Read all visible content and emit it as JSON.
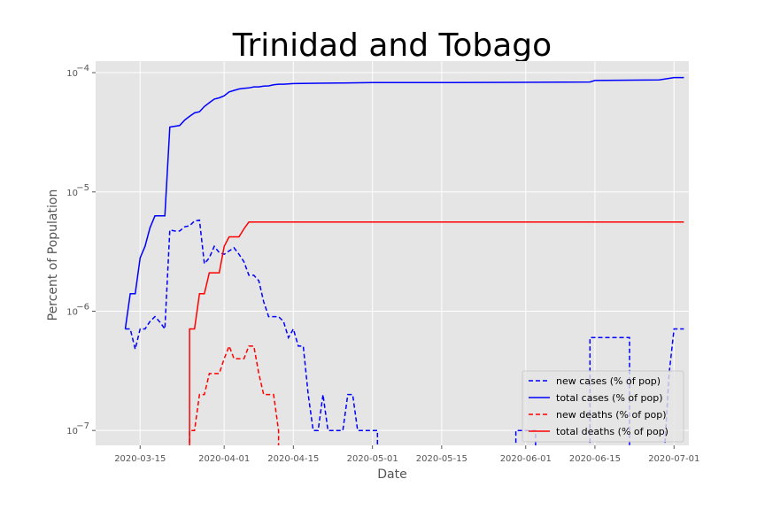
{
  "chart_data": {
    "type": "line",
    "title": "Trinidad and Tobago",
    "xlabel": "Date",
    "ylabel": "Percent of Population",
    "y_scale": "log",
    "ylim": [
      7.5e-08,
      0.000125
    ],
    "xlim": [
      "2020-03-06",
      "2020-07-04"
    ],
    "grid": true,
    "legend_position": "lower-right",
    "x_ticks": [
      "2020-03-15",
      "2020-04-01",
      "2020-04-15",
      "2020-05-01",
      "2020-05-15",
      "2020-06-01",
      "2020-06-15",
      "2020-07-01"
    ],
    "y_ticks": [
      {
        "value": 1e-07,
        "base": "10",
        "exp": "−7"
      },
      {
        "value": 1e-06,
        "base": "10",
        "exp": "−6"
      },
      {
        "value": 1e-05,
        "base": "10",
        "exp": "−5"
      },
      {
        "value": 0.0001,
        "base": "10",
        "exp": "−4"
      }
    ],
    "series": [
      {
        "name": "new cases (% of pop)",
        "color": "#0000ff",
        "style": "dashed",
        "points": [
          [
            "2020-03-12",
            7.1e-07
          ],
          [
            "2020-03-13",
            7.1e-07
          ],
          [
            "2020-03-14",
            4.8e-07
          ],
          [
            "2020-03-15",
            7.1e-07
          ],
          [
            "2020-03-16",
            7.1e-07
          ],
          [
            "2020-03-17",
            8.2e-07
          ],
          [
            "2020-03-18",
            9e-07
          ],
          [
            "2020-03-19",
            8.1e-07
          ],
          [
            "2020-03-20",
            7.1e-07
          ],
          [
            "2020-03-21",
            4.8e-06
          ],
          [
            "2020-03-22",
            4.7e-06
          ],
          [
            "2020-03-23",
            4.7e-06
          ],
          [
            "2020-03-24",
            5.1e-06
          ],
          [
            "2020-03-25",
            5.2e-06
          ],
          [
            "2020-03-26",
            5.7e-06
          ],
          [
            "2020-03-27",
            5.8e-06
          ],
          [
            "2020-03-28",
            2.5e-06
          ],
          [
            "2020-03-29",
            2.8e-06
          ],
          [
            "2020-03-30",
            3.5e-06
          ],
          [
            "2020-03-31",
            3.1e-06
          ],
          [
            "2020-04-01",
            3e-06
          ],
          [
            "2020-04-02",
            3.2e-06
          ],
          [
            "2020-04-03",
            3.4e-06
          ],
          [
            "2020-04-04",
            3e-06
          ],
          [
            "2020-04-05",
            2.6e-06
          ],
          [
            "2020-04-06",
            2e-06
          ],
          [
            "2020-04-07",
            2e-06
          ],
          [
            "2020-04-08",
            1.8e-06
          ],
          [
            "2020-04-09",
            1.2e-06
          ],
          [
            "2020-04-10",
            9e-07
          ],
          [
            "2020-04-11",
            9e-07
          ],
          [
            "2020-04-12",
            9e-07
          ],
          [
            "2020-04-13",
            8.2e-07
          ],
          [
            "2020-04-14",
            6e-07
          ],
          [
            "2020-04-15",
            7.1e-07
          ],
          [
            "2020-04-16",
            5.1e-07
          ],
          [
            "2020-04-17",
            5.1e-07
          ],
          [
            "2020-04-18",
            2e-07
          ],
          [
            "2020-04-19",
            1e-07
          ],
          [
            "2020-04-20",
            1e-07
          ],
          [
            "2020-04-21",
            2e-07
          ],
          [
            "2020-04-22",
            1e-07
          ],
          [
            "2020-04-23",
            1e-07
          ],
          [
            "2020-04-24",
            1e-07
          ],
          [
            "2020-04-25",
            1e-07
          ],
          [
            "2020-04-26",
            2e-07
          ],
          [
            "2020-04-27",
            2e-07
          ],
          [
            "2020-04-28",
            1e-07
          ],
          [
            "2020-04-29",
            1e-07
          ],
          [
            "2020-04-30",
            1e-07
          ],
          [
            "2020-05-01",
            1e-07
          ],
          [
            "2020-05-02",
            1e-07
          ],
          [
            "2020-05-02",
            6e-08
          ]
        ],
        "segments_extra": [
          [
            [
              "2020-05-30",
              6e-08
            ],
            [
              "2020-05-30",
              1e-07
            ],
            [
              "2020-06-03",
              1e-07
            ],
            [
              "2020-06-03",
              6e-08
            ]
          ],
          [
            [
              "2020-06-14",
              6e-08
            ],
            [
              "2020-06-14",
              6e-07
            ],
            [
              "2020-06-22",
              6e-07
            ],
            [
              "2020-06-22",
              6e-08
            ]
          ],
          [
            [
              "2020-06-29",
              6e-08
            ],
            [
              "2020-06-30",
              3e-07
            ],
            [
              "2020-07-01",
              7.1e-07
            ],
            [
              "2020-07-03",
              7.1e-07
            ]
          ]
        ]
      },
      {
        "name": "total cases (% of pop)",
        "color": "#0000ff",
        "style": "solid",
        "points": [
          [
            "2020-03-12",
            7.1e-07
          ],
          [
            "2020-03-13",
            1.4e-06
          ],
          [
            "2020-03-14",
            1.4e-06
          ],
          [
            "2020-03-15",
            2.8e-06
          ],
          [
            "2020-03-16",
            3.5e-06
          ],
          [
            "2020-03-17",
            5e-06
          ],
          [
            "2020-03-18",
            6.3e-06
          ],
          [
            "2020-03-19",
            6.3e-06
          ],
          [
            "2020-03-20",
            6.3e-06
          ],
          [
            "2020-03-21",
            3.5e-05
          ],
          [
            "2020-03-22",
            3.55e-05
          ],
          [
            "2020-03-23",
            3.6e-05
          ],
          [
            "2020-03-24",
            4e-05
          ],
          [
            "2020-03-25",
            4.3e-05
          ],
          [
            "2020-03-26",
            4.6e-05
          ],
          [
            "2020-03-27",
            4.7e-05
          ],
          [
            "2020-03-28",
            5.2e-05
          ],
          [
            "2020-03-29",
            5.6e-05
          ],
          [
            "2020-03-30",
            6e-05
          ],
          [
            "2020-03-31",
            6.15e-05
          ],
          [
            "2020-04-01",
            6.4e-05
          ],
          [
            "2020-04-02",
            6.9e-05
          ],
          [
            "2020-04-03",
            7.1e-05
          ],
          [
            "2020-04-04",
            7.3e-05
          ],
          [
            "2020-04-05",
            7.4e-05
          ],
          [
            "2020-04-06",
            7.45e-05
          ],
          [
            "2020-04-07",
            7.6e-05
          ],
          [
            "2020-04-08",
            7.6e-05
          ],
          [
            "2020-04-09",
            7.7e-05
          ],
          [
            "2020-04-10",
            7.75e-05
          ],
          [
            "2020-04-11",
            7.9e-05
          ],
          [
            "2020-04-12",
            8e-05
          ],
          [
            "2020-04-13",
            8e-05
          ],
          [
            "2020-04-14",
            8.05e-05
          ],
          [
            "2020-04-15",
            8.1e-05
          ],
          [
            "2020-04-20",
            8.15e-05
          ],
          [
            "2020-04-25",
            8.2e-05
          ],
          [
            "2020-05-01",
            8.25e-05
          ],
          [
            "2020-05-15",
            8.25e-05
          ],
          [
            "2020-05-30",
            8.3e-05
          ],
          [
            "2020-06-14",
            8.35e-05
          ],
          [
            "2020-06-15",
            8.6e-05
          ],
          [
            "2020-06-28",
            8.7e-05
          ],
          [
            "2020-07-01",
            9.1e-05
          ],
          [
            "2020-07-03",
            9.1e-05
          ]
        ]
      },
      {
        "name": "new deaths (% of pop)",
        "color": "#ff0000",
        "style": "dashed",
        "points": [
          [
            "2020-03-25",
            6e-08
          ],
          [
            "2020-03-25",
            1e-07
          ],
          [
            "2020-03-26",
            1e-07
          ],
          [
            "2020-03-27",
            2e-07
          ],
          [
            "2020-03-28",
            2e-07
          ],
          [
            "2020-03-29",
            3e-07
          ],
          [
            "2020-03-30",
            3e-07
          ],
          [
            "2020-03-31",
            3e-07
          ],
          [
            "2020-04-01",
            4e-07
          ],
          [
            "2020-04-02",
            5.1e-07
          ],
          [
            "2020-04-03",
            4e-07
          ],
          [
            "2020-04-04",
            4e-07
          ],
          [
            "2020-04-05",
            4e-07
          ],
          [
            "2020-04-06",
            5.1e-07
          ],
          [
            "2020-04-07",
            5.1e-07
          ],
          [
            "2020-04-08",
            3e-07
          ],
          [
            "2020-04-09",
            2e-07
          ],
          [
            "2020-04-10",
            2e-07
          ],
          [
            "2020-04-11",
            2e-07
          ],
          [
            "2020-04-12",
            1e-07
          ],
          [
            "2020-04-12",
            6e-08
          ]
        ]
      },
      {
        "name": "total deaths (% of pop)",
        "color": "#ff0000",
        "style": "solid",
        "points": [
          [
            "2020-03-25",
            6e-08
          ],
          [
            "2020-03-25",
            7.1e-07
          ],
          [
            "2020-03-26",
            7.1e-07
          ],
          [
            "2020-03-27",
            1.4e-06
          ],
          [
            "2020-03-28",
            1.4e-06
          ],
          [
            "2020-03-29",
            2.1e-06
          ],
          [
            "2020-03-30",
            2.1e-06
          ],
          [
            "2020-03-31",
            2.1e-06
          ],
          [
            "2020-04-01",
            3.5e-06
          ],
          [
            "2020-04-02",
            4.2e-06
          ],
          [
            "2020-04-03",
            4.2e-06
          ],
          [
            "2020-04-04",
            4.2e-06
          ],
          [
            "2020-04-05",
            4.9e-06
          ],
          [
            "2020-04-06",
            5.6e-06
          ],
          [
            "2020-07-03",
            5.6e-06
          ]
        ]
      }
    ]
  }
}
